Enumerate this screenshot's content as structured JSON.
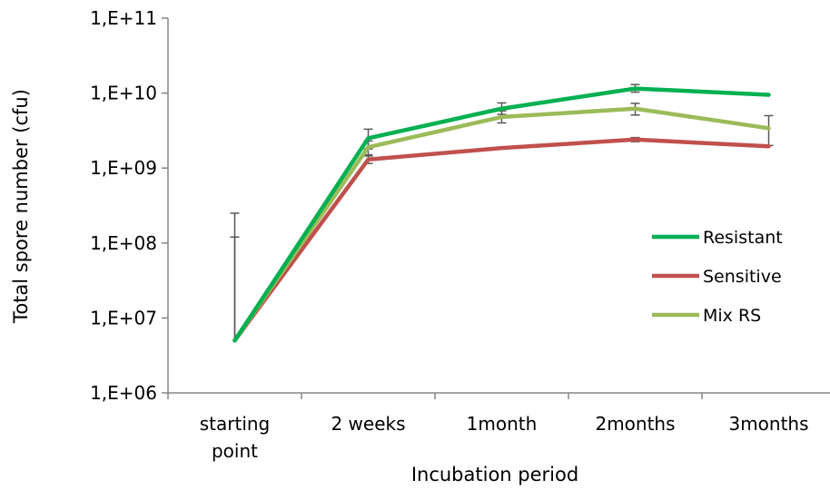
{
  "chart_data": {
    "type": "line",
    "title": "",
    "xlabel": "Incubation period",
    "ylabel": "Total spore number (cfu)",
    "yscale": "log",
    "ylim": [
      1000000,
      100000000000
    ],
    "yticks": [
      1000000,
      10000000,
      100000000,
      1000000000,
      10000000000,
      100000000000
    ],
    "ytick_labels": [
      "1,E+06",
      "1,E+07",
      "1,E+08",
      "1,E+09",
      "1,E+10",
      "1,E+11"
    ],
    "categories": [
      [
        "starting",
        "point"
      ],
      [
        "2 weeks"
      ],
      [
        "1month"
      ],
      [
        "2months"
      ],
      [
        "3months"
      ]
    ],
    "grid": false,
    "legend_position": "right",
    "series": [
      {
        "name": "Resistant",
        "color": "#00B050",
        "values": [
          5000000,
          2500000000,
          6200000000,
          11500000000,
          9500000000
        ],
        "err_high": [
          null,
          3300000000,
          7400000000,
          13000000000,
          null
        ],
        "err_low": [
          null,
          1800000000,
          5200000000,
          10300000000,
          null
        ]
      },
      {
        "name": "Sensitive",
        "color": "#C0504D",
        "values": [
          5000000,
          1300000000,
          1850000000,
          2400000000,
          1950000000
        ],
        "err_high": [
          120000000,
          1450000000,
          null,
          2550000000,
          null
        ],
        "err_low": [
          null,
          1150000000,
          null,
          2250000000,
          null
        ]
      },
      {
        "name": "Mix RS",
        "color": "#9BBB59",
        "values": [
          5000000,
          1900000000,
          4800000000,
          6200000000,
          3400000000
        ],
        "err_high": [
          250000000,
          2300000000,
          5800000000,
          7300000000,
          5000000000
        ],
        "err_low": [
          null,
          1500000000,
          4000000000,
          5100000000,
          2000000000
        ]
      }
    ]
  }
}
